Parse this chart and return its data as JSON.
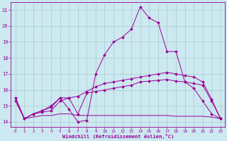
{
  "xlabel": "Windchill (Refroidissement éolien,°C)",
  "background_color": "#cce8f0",
  "line_color": "#990099",
  "grid_color": "#aacccc",
  "xlim": [
    -0.5,
    23.5
  ],
  "ylim": [
    13.7,
    21.5
  ],
  "yticks": [
    14,
    15,
    16,
    17,
    18,
    19,
    20,
    21
  ],
  "xticks": [
    0,
    1,
    2,
    3,
    4,
    5,
    6,
    7,
    8,
    9,
    10,
    11,
    12,
    13,
    14,
    15,
    16,
    17,
    18,
    19,
    20,
    21,
    22,
    23
  ],
  "line1_x": [
    0,
    1,
    2,
    3,
    4,
    5,
    6,
    7,
    8,
    9,
    10,
    11,
    12,
    13,
    14,
    15,
    16,
    17,
    18,
    19,
    20,
    21,
    22,
    23
  ],
  "line1_y": [
    15.5,
    14.2,
    14.5,
    14.7,
    14.9,
    15.5,
    14.8,
    14.0,
    14.1,
    17.0,
    18.2,
    19.0,
    19.3,
    19.8,
    21.2,
    20.5,
    20.2,
    18.4,
    18.4,
    16.5,
    16.1,
    15.3,
    14.5,
    14.2
  ],
  "line2_x": [
    0,
    1,
    2,
    3,
    4,
    5,
    6,
    7,
    8,
    9,
    10,
    11,
    12,
    13,
    14,
    15,
    16,
    17,
    18,
    19,
    20,
    21,
    22,
    23
  ],
  "line2_y": [
    15.5,
    14.2,
    14.5,
    14.7,
    15.0,
    15.5,
    15.5,
    15.6,
    15.9,
    16.2,
    16.4,
    16.5,
    16.6,
    16.7,
    16.8,
    16.9,
    17.0,
    17.1,
    17.0,
    16.9,
    16.8,
    16.5,
    15.4,
    14.2
  ],
  "line3_x": [
    0,
    1,
    2,
    3,
    4,
    5,
    6,
    7,
    8,
    9,
    10,
    11,
    12,
    13,
    14,
    15,
    16,
    17,
    18,
    19,
    20,
    21,
    22,
    23
  ],
  "line3_y": [
    15.3,
    14.2,
    14.5,
    14.6,
    14.7,
    15.3,
    15.5,
    14.5,
    15.8,
    15.9,
    16.0,
    16.1,
    16.2,
    16.3,
    16.5,
    16.55,
    16.6,
    16.65,
    16.55,
    16.5,
    16.4,
    16.3,
    15.3,
    14.2
  ],
  "line4_x": [
    0,
    1,
    2,
    3,
    4,
    5,
    6,
    7,
    8,
    9,
    10,
    11,
    12,
    13,
    14,
    15,
    16,
    17,
    18,
    19,
    20,
    21,
    22,
    23
  ],
  "line4_y": [
    15.5,
    14.2,
    14.3,
    14.4,
    14.4,
    14.5,
    14.5,
    14.4,
    14.4,
    14.4,
    14.4,
    14.4,
    14.4,
    14.4,
    14.4,
    14.4,
    14.4,
    14.4,
    14.35,
    14.35,
    14.35,
    14.35,
    14.3,
    14.2
  ]
}
